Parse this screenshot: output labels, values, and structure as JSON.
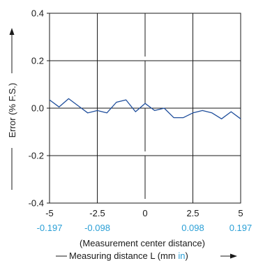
{
  "chart_data": {
    "type": "line",
    "ylabel": "Error (% F.S.)",
    "xlabel_sub": "(Measurement center distance)",
    "xlabel_main": "Measuring distance L (mm ",
    "xlabel_unit_alt": "in",
    "xlabel_close": ")",
    "xlim": [
      -5,
      5
    ],
    "ylim": [
      -0.4,
      0.4
    ],
    "x_ticks": [
      -5,
      -2.5,
      0,
      2.5,
      5
    ],
    "x_tick_labels": [
      "-5",
      "-2.5",
      "0",
      "2.5",
      "5"
    ],
    "x_tick_labels_in": [
      "-0.197",
      "-0.098",
      "",
      "0.098",
      "0.197"
    ],
    "y_ticks": [
      0.4,
      0.2,
      0.0,
      -0.2,
      -0.4
    ],
    "y_tick_labels": [
      "0.4",
      "0.2",
      "0.0",
      "-0.2",
      "-0.4"
    ],
    "grid": true,
    "series": [
      {
        "color": "#1f4e9c",
        "x": [
          -5,
          -4.5,
          -4,
          -3.5,
          -3,
          -2.5,
          -2,
          -1.5,
          -1,
          -0.5,
          0,
          0.5,
          1,
          1.5,
          2,
          2.5,
          3,
          3.5,
          4,
          4.5,
          5
        ],
        "y": [
          0.035,
          0.005,
          0.04,
          0.01,
          -0.02,
          -0.01,
          -0.02,
          0.025,
          0.035,
          -0.015,
          0.02,
          -0.01,
          0.0,
          -0.04,
          -0.04,
          -0.02,
          -0.01,
          -0.02,
          -0.045,
          -0.015,
          -0.045
        ]
      }
    ]
  }
}
